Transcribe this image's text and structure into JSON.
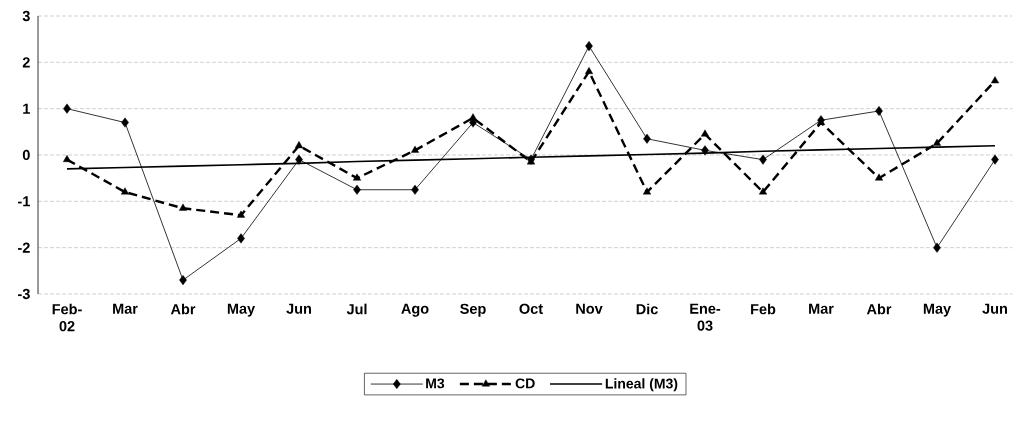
{
  "chart_data": {
    "type": "line",
    "categories": [
      "Feb-02",
      "Mar",
      "Abr",
      "May",
      "Jun",
      "Jul",
      "Ago",
      "Sep",
      "Oct",
      "Nov",
      "Dic",
      "Ene-03",
      "Feb",
      "Mar",
      "Abr",
      "May",
      "Jun"
    ],
    "series": [
      {
        "name": "M3",
        "color": "#000000",
        "marker": "diamond",
        "line_style": "solid",
        "values": [
          1.0,
          0.7,
          -2.7,
          -1.8,
          -0.1,
          -0.75,
          -0.75,
          0.7,
          -0.1,
          2.35,
          0.35,
          0.1,
          -0.1,
          0.75,
          0.95,
          -2.0,
          -0.1
        ]
      },
      {
        "name": "CD",
        "color": "#000000",
        "marker": "triangle",
        "line_style": "dashed",
        "values": [
          -0.1,
          -0.8,
          -1.15,
          -1.3,
          0.2,
          -0.5,
          0.1,
          0.8,
          -0.15,
          1.8,
          -0.8,
          0.45,
          -0.8,
          0.7,
          -0.5,
          0.25,
          1.6
        ]
      },
      {
        "name": "Lineal (M3)",
        "color": "#000000",
        "marker": "none",
        "line_style": "solid",
        "values": [
          -0.3,
          -0.27,
          -0.24,
          -0.21,
          -0.18,
          -0.14,
          -0.11,
          -0.08,
          -0.05,
          -0.02,
          0.01,
          0.04,
          0.08,
          0.11,
          0.14,
          0.17,
          0.2
        ]
      }
    ],
    "ylim": [
      -3,
      3
    ],
    "yticks": [
      -3,
      -2,
      -1,
      0,
      1,
      2,
      3
    ],
    "grid": "y",
    "legend": "bottom"
  }
}
